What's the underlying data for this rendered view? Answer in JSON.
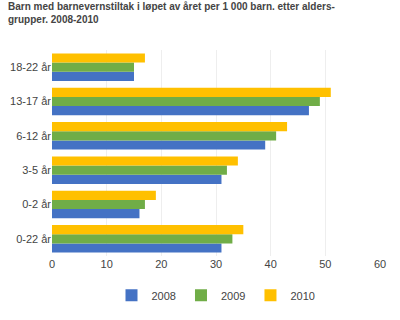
{
  "chart_data": {
    "type": "bar",
    "orientation": "horizontal",
    "title": "Barn med barnevernstiltak i løpet av året per 1 000 barn. etter alders-\ngrupper. 2008-2010",
    "categories": [
      "0-22 år",
      "0-2 år",
      "3-5 år",
      "6-12 år",
      "13-17 år",
      "18-22 år"
    ],
    "series": [
      {
        "name": "2008",
        "color": "#4472C4",
        "values": [
          31,
          16,
          31,
          39,
          47,
          15
        ]
      },
      {
        "name": "2009",
        "color": "#70AD47",
        "values": [
          33,
          17,
          32,
          41,
          49,
          15
        ]
      },
      {
        "name": "2010",
        "color": "#FFC000",
        "values": [
          35,
          19,
          34,
          43,
          51,
          17
        ]
      }
    ],
    "xlim": [
      0,
      60
    ],
    "xticks": [
      0,
      10,
      20,
      30,
      40,
      50,
      60
    ],
    "grid": true,
    "legend": "bottom"
  }
}
